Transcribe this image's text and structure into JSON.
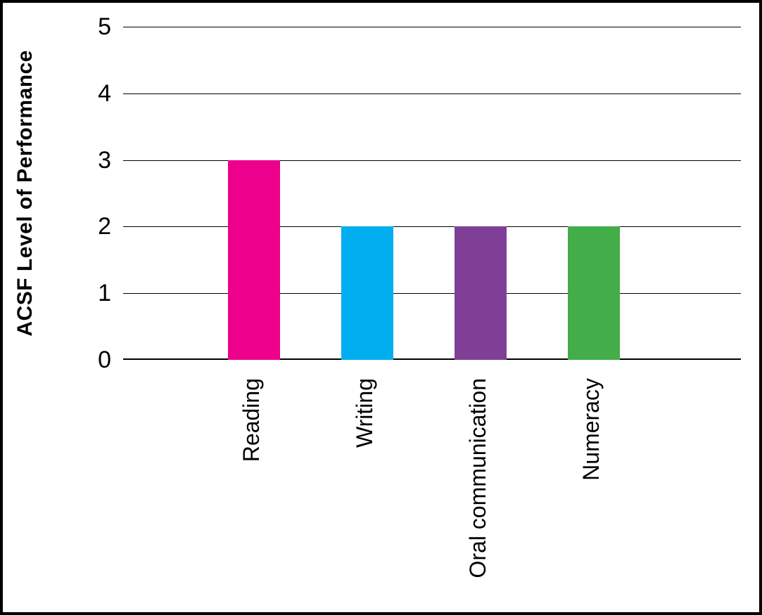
{
  "chart_data": {
    "type": "bar",
    "title": "",
    "categories": [
      "Reading",
      "Writing",
      "Oral communication",
      "Numeracy"
    ],
    "values": [
      3,
      2,
      2,
      2
    ],
    "bar_colors": [
      "#EC008C",
      "#00AEEF",
      "#7F3F97",
      "#42AD49"
    ],
    "xlabel": "",
    "ylabel": "ACSF Level of Performance",
    "ylim": [
      0,
      5
    ],
    "yticks": [
      0,
      1,
      2,
      3,
      4,
      5
    ],
    "grid": "horizontal",
    "gridline_color": "#000000",
    "axis_text_color": "#000000",
    "frame_color": "#000000",
    "legend": "none"
  }
}
